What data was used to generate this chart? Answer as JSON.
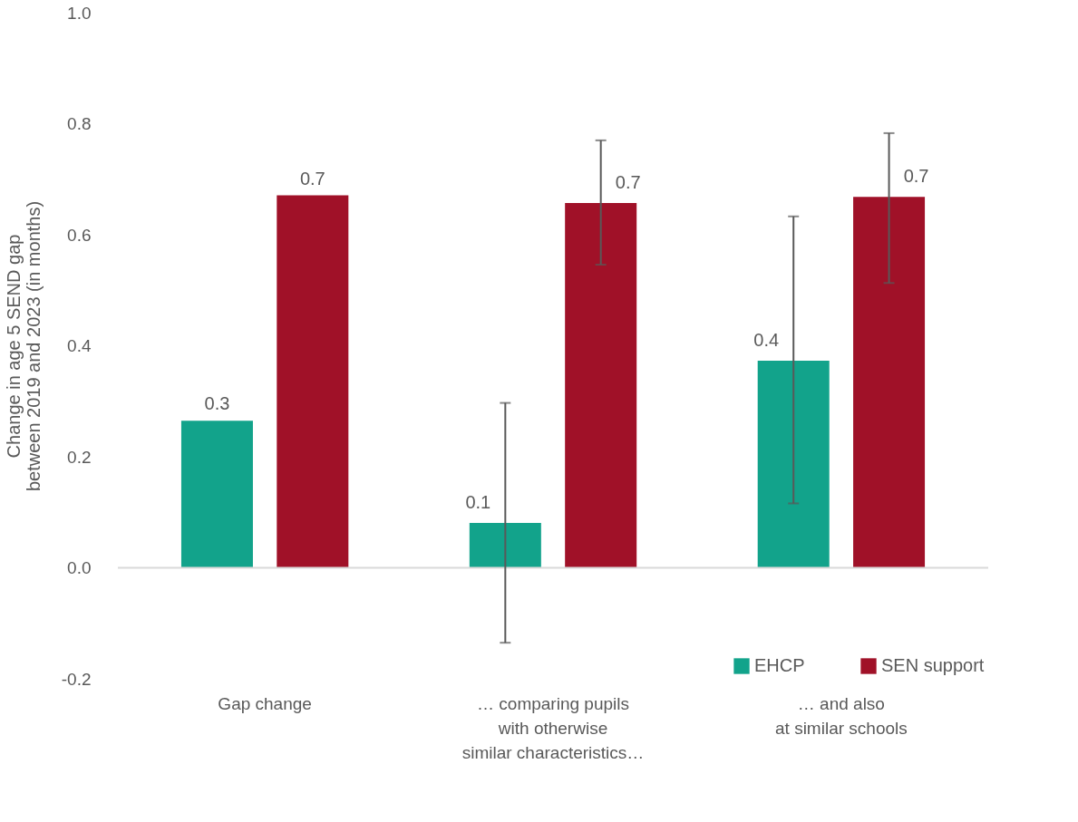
{
  "chart_data": {
    "type": "bar",
    "ylabel": "Change in age 5 SEND gap\nbetween 2019 and 2023  (in months)",
    "categories": [
      "Gap change",
      "… comparing pupils\nwith otherwise\nsimilar characteristics…",
      "… and also\nat similar schools"
    ],
    "series": [
      {
        "name": "EHCP",
        "color": "#12a38b",
        "values": [
          0.265,
          0.081,
          0.373
        ],
        "errors": [
          null,
          [
            -0.135,
            0.297
          ],
          [
            0.116,
            0.633
          ]
        ],
        "value_labels": [
          "0.3",
          "0.1",
          "0.4"
        ]
      },
      {
        "name": "SEN support",
        "color": "#a01128",
        "values": [
          0.671,
          0.657,
          0.668
        ],
        "errors": [
          null,
          [
            0.546,
            0.77
          ],
          [
            0.513,
            0.783
          ]
        ],
        "value_labels": [
          "0.7",
          "0.7",
          "0.7"
        ]
      }
    ],
    "ylim": [
      -0.2,
      1.0
    ],
    "yticks": [
      {
        "value": -0.2,
        "label": "-0.2"
      },
      {
        "value": 0,
        "label": "0.0"
      },
      {
        "value": 0.2,
        "label": "0.2"
      },
      {
        "value": 0.4,
        "label": "0.4"
      },
      {
        "value": 0.6,
        "label": "0.6"
      },
      {
        "value": 0.8,
        "label": "0.8"
      },
      {
        "value": 1,
        "label": "1.0"
      }
    ],
    "legend": "bottom right"
  }
}
